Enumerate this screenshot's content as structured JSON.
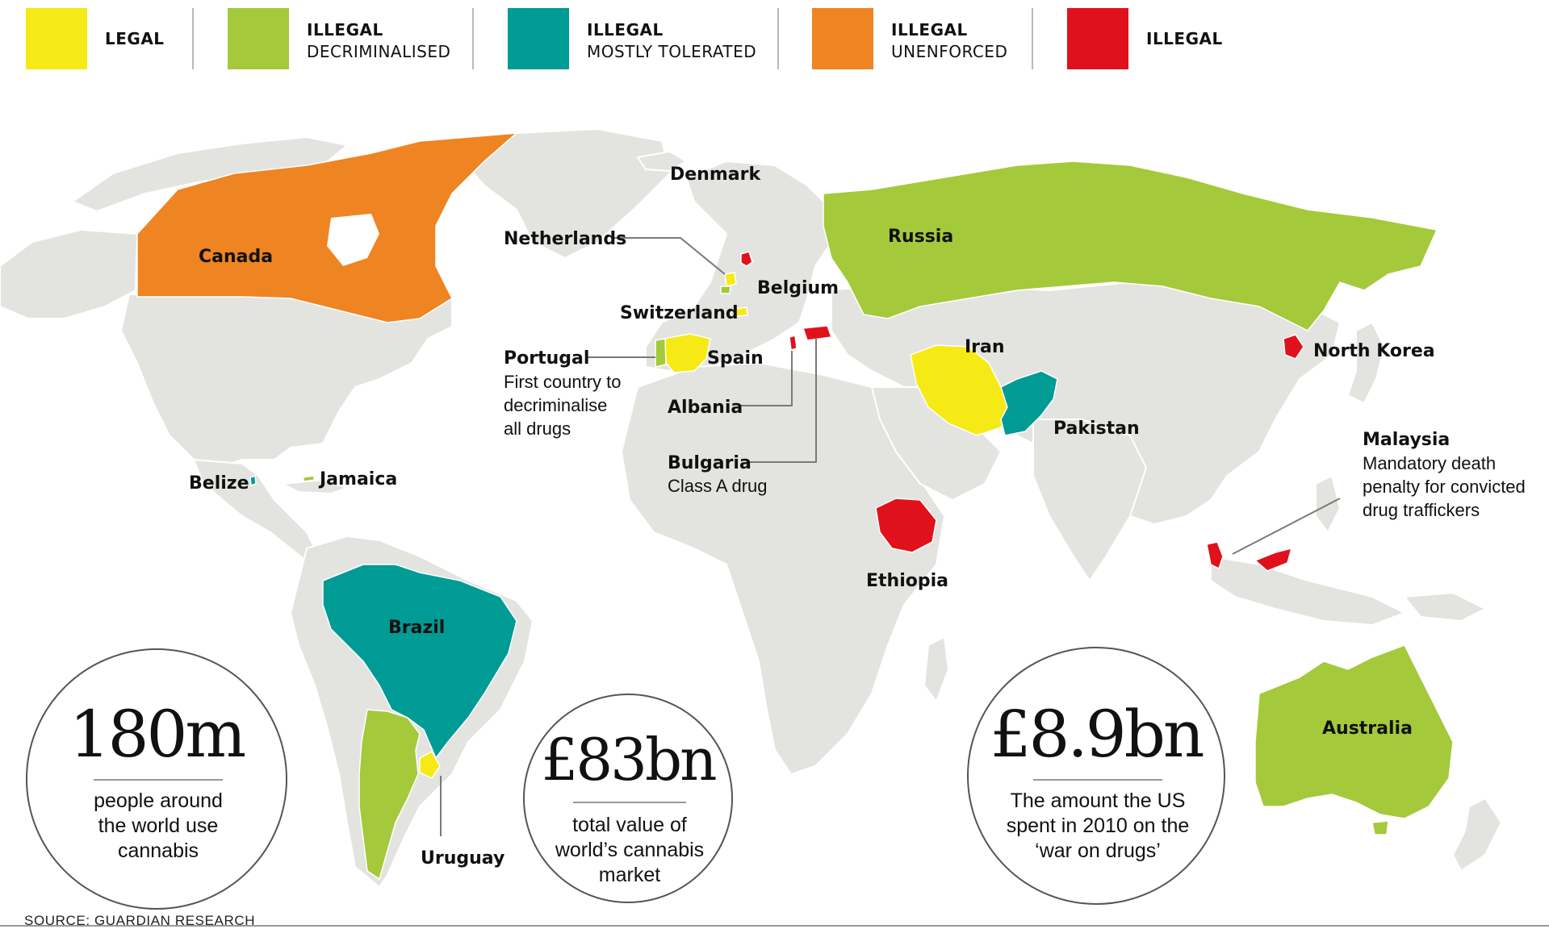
{
  "legend": [
    {
      "line1": "LEGAL",
      "line2": "",
      "color": "#f6ea16"
    },
    {
      "line1": "ILLEGAL",
      "line2": "DECRIMINALISED",
      "color": "#a4c93a"
    },
    {
      "line1": "ILLEGAL",
      "line2": "MOSTLY TOLERATED",
      "color": "#009b95"
    },
    {
      "line1": "ILLEGAL",
      "line2": "UNENFORCED",
      "color": "#ef8422"
    },
    {
      "line1": "ILLEGAL",
      "line2": "",
      "color": "#e0111b"
    }
  ],
  "colors": {
    "land": "#e3e3e0",
    "legal": "#f6ea16",
    "decriminalised": "#a4c93a",
    "tolerated": "#009b95",
    "unenforced": "#ef8422",
    "illegal": "#e0111b"
  },
  "countries": {
    "canada": "Canada",
    "denmark": "Denmark",
    "netherlands": "Netherlands",
    "belgium": "Belgium",
    "switzerland": "Switzerland",
    "russia": "Russia",
    "portugal": "Portugal",
    "portugal_note": [
      "First country to",
      "decriminalise",
      "all drugs"
    ],
    "spain": "Spain",
    "iran": "Iran",
    "north_korea": "North Korea",
    "albania": "Albania",
    "pakistan": "Pakistan",
    "bulgaria": "Bulgaria",
    "bulgaria_note": "Class A drug",
    "malaysia": "Malaysia",
    "malaysia_note": [
      "Mandatory death",
      "penalty for convicted",
      "drug traffickers"
    ],
    "belize": "Belize",
    "jamaica": "Jamaica",
    "ethiopia": "Ethiopia",
    "brazil": "Brazil",
    "australia": "Australia",
    "uruguay": "Uruguay"
  },
  "stats": [
    {
      "value": "180m",
      "description": [
        "people around",
        "the world use",
        "cannabis"
      ]
    },
    {
      "value": "£83bn",
      "description": [
        "total value of",
        "world’s cannabis",
        "market"
      ]
    },
    {
      "value": "£8.9bn",
      "description": [
        "The amount the US",
        "spent in 2010 on the",
        "‘war on drugs’"
      ]
    }
  ],
  "source": "SOURCE: GUARDIAN RESEARCH"
}
